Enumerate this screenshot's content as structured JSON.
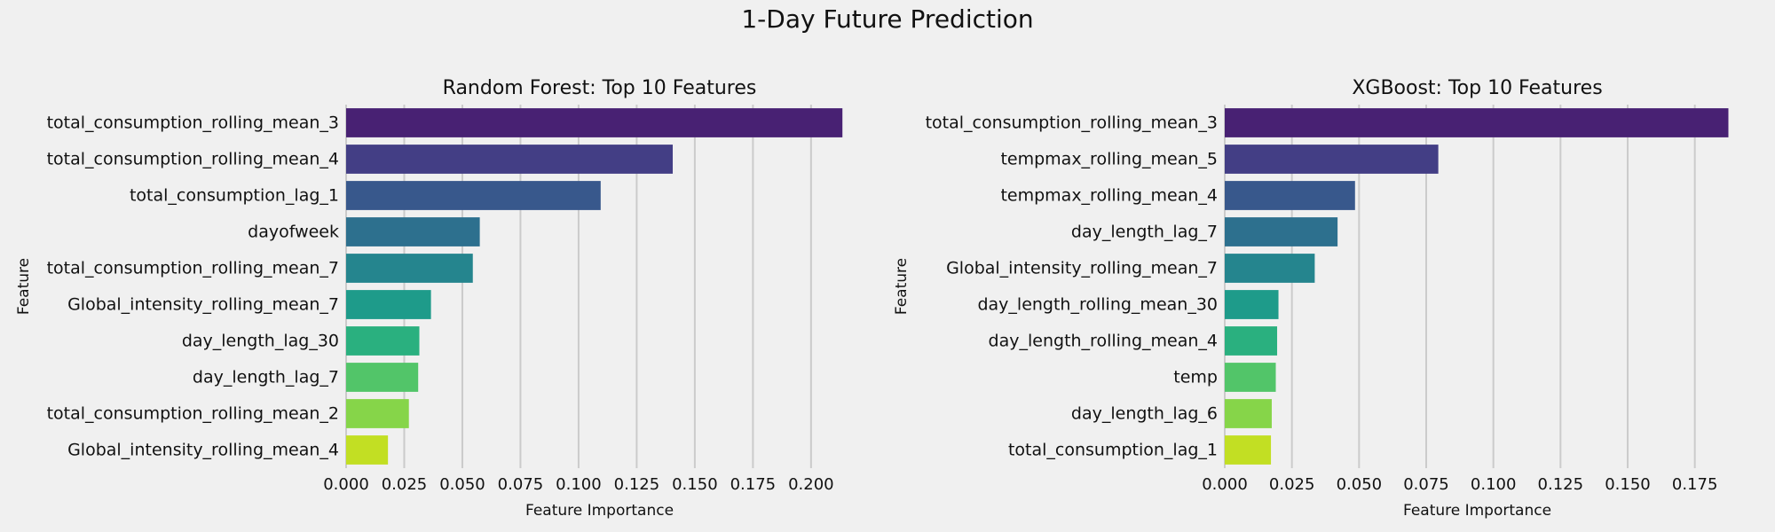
{
  "figure": {
    "title": "1-Day Future Prediction"
  },
  "colors": {
    "background": "#f0f0f0",
    "grid": "#cbcbcb",
    "text": "#111111",
    "palette": [
      "#482173",
      "#433e85",
      "#38588c",
      "#2d708e",
      "#25858e",
      "#1e9b8a",
      "#2ab07f",
      "#52c569",
      "#86d549",
      "#c2df23"
    ]
  },
  "chart_data": [
    {
      "type": "bar",
      "orientation": "horizontal",
      "title": "Random Forest: Top 10 Features",
      "xlabel": "Feature Importance",
      "ylabel": "Feature",
      "xlim": [
        0,
        0.218
      ],
      "xticks": [
        0.0,
        0.025,
        0.05,
        0.075,
        0.1,
        0.125,
        0.15,
        0.175,
        0.2
      ],
      "xtick_labels": [
        "0.000",
        "0.025",
        "0.050",
        "0.075",
        "0.100",
        "0.125",
        "0.150",
        "0.175",
        "0.200"
      ],
      "grid": "vertical",
      "categories": [
        "total_consumption_rolling_mean_3",
        "total_consumption_rolling_mean_4",
        "total_consumption_lag_1",
        "dayofweek",
        "total_consumption_rolling_mean_7",
        "Global_intensity_rolling_mean_7",
        "day_length_lag_30",
        "day_length_lag_7",
        "total_consumption_rolling_mean_2",
        "Global_intensity_rolling_mean_4"
      ],
      "values": [
        0.2135,
        0.1405,
        0.1095,
        0.0575,
        0.0545,
        0.0365,
        0.0315,
        0.031,
        0.027,
        0.018
      ]
    },
    {
      "type": "bar",
      "orientation": "horizontal",
      "title": "XGBoost: Top 10 Features",
      "xlabel": "Feature Importance",
      "ylabel": "Feature",
      "xlim": [
        0,
        0.188
      ],
      "xticks": [
        0.0,
        0.025,
        0.05,
        0.075,
        0.1,
        0.125,
        0.15,
        0.175
      ],
      "xtick_labels": [
        "0.000",
        "0.025",
        "0.050",
        "0.075",
        "0.100",
        "0.125",
        "0.150",
        "0.175"
      ],
      "grid": "vertical",
      "categories": [
        "total_consumption_rolling_mean_3",
        "tempmax_rolling_mean_5",
        "tempmax_rolling_mean_4",
        "day_length_lag_7",
        "Global_intensity_rolling_mean_7",
        "day_length_rolling_mean_30",
        "day_length_rolling_mean_4",
        "temp",
        "day_length_lag_6",
        "total_consumption_lag_1"
      ],
      "values": [
        0.1875,
        0.0795,
        0.0485,
        0.042,
        0.0335,
        0.02,
        0.0195,
        0.019,
        0.0175,
        0.0172
      ]
    }
  ]
}
